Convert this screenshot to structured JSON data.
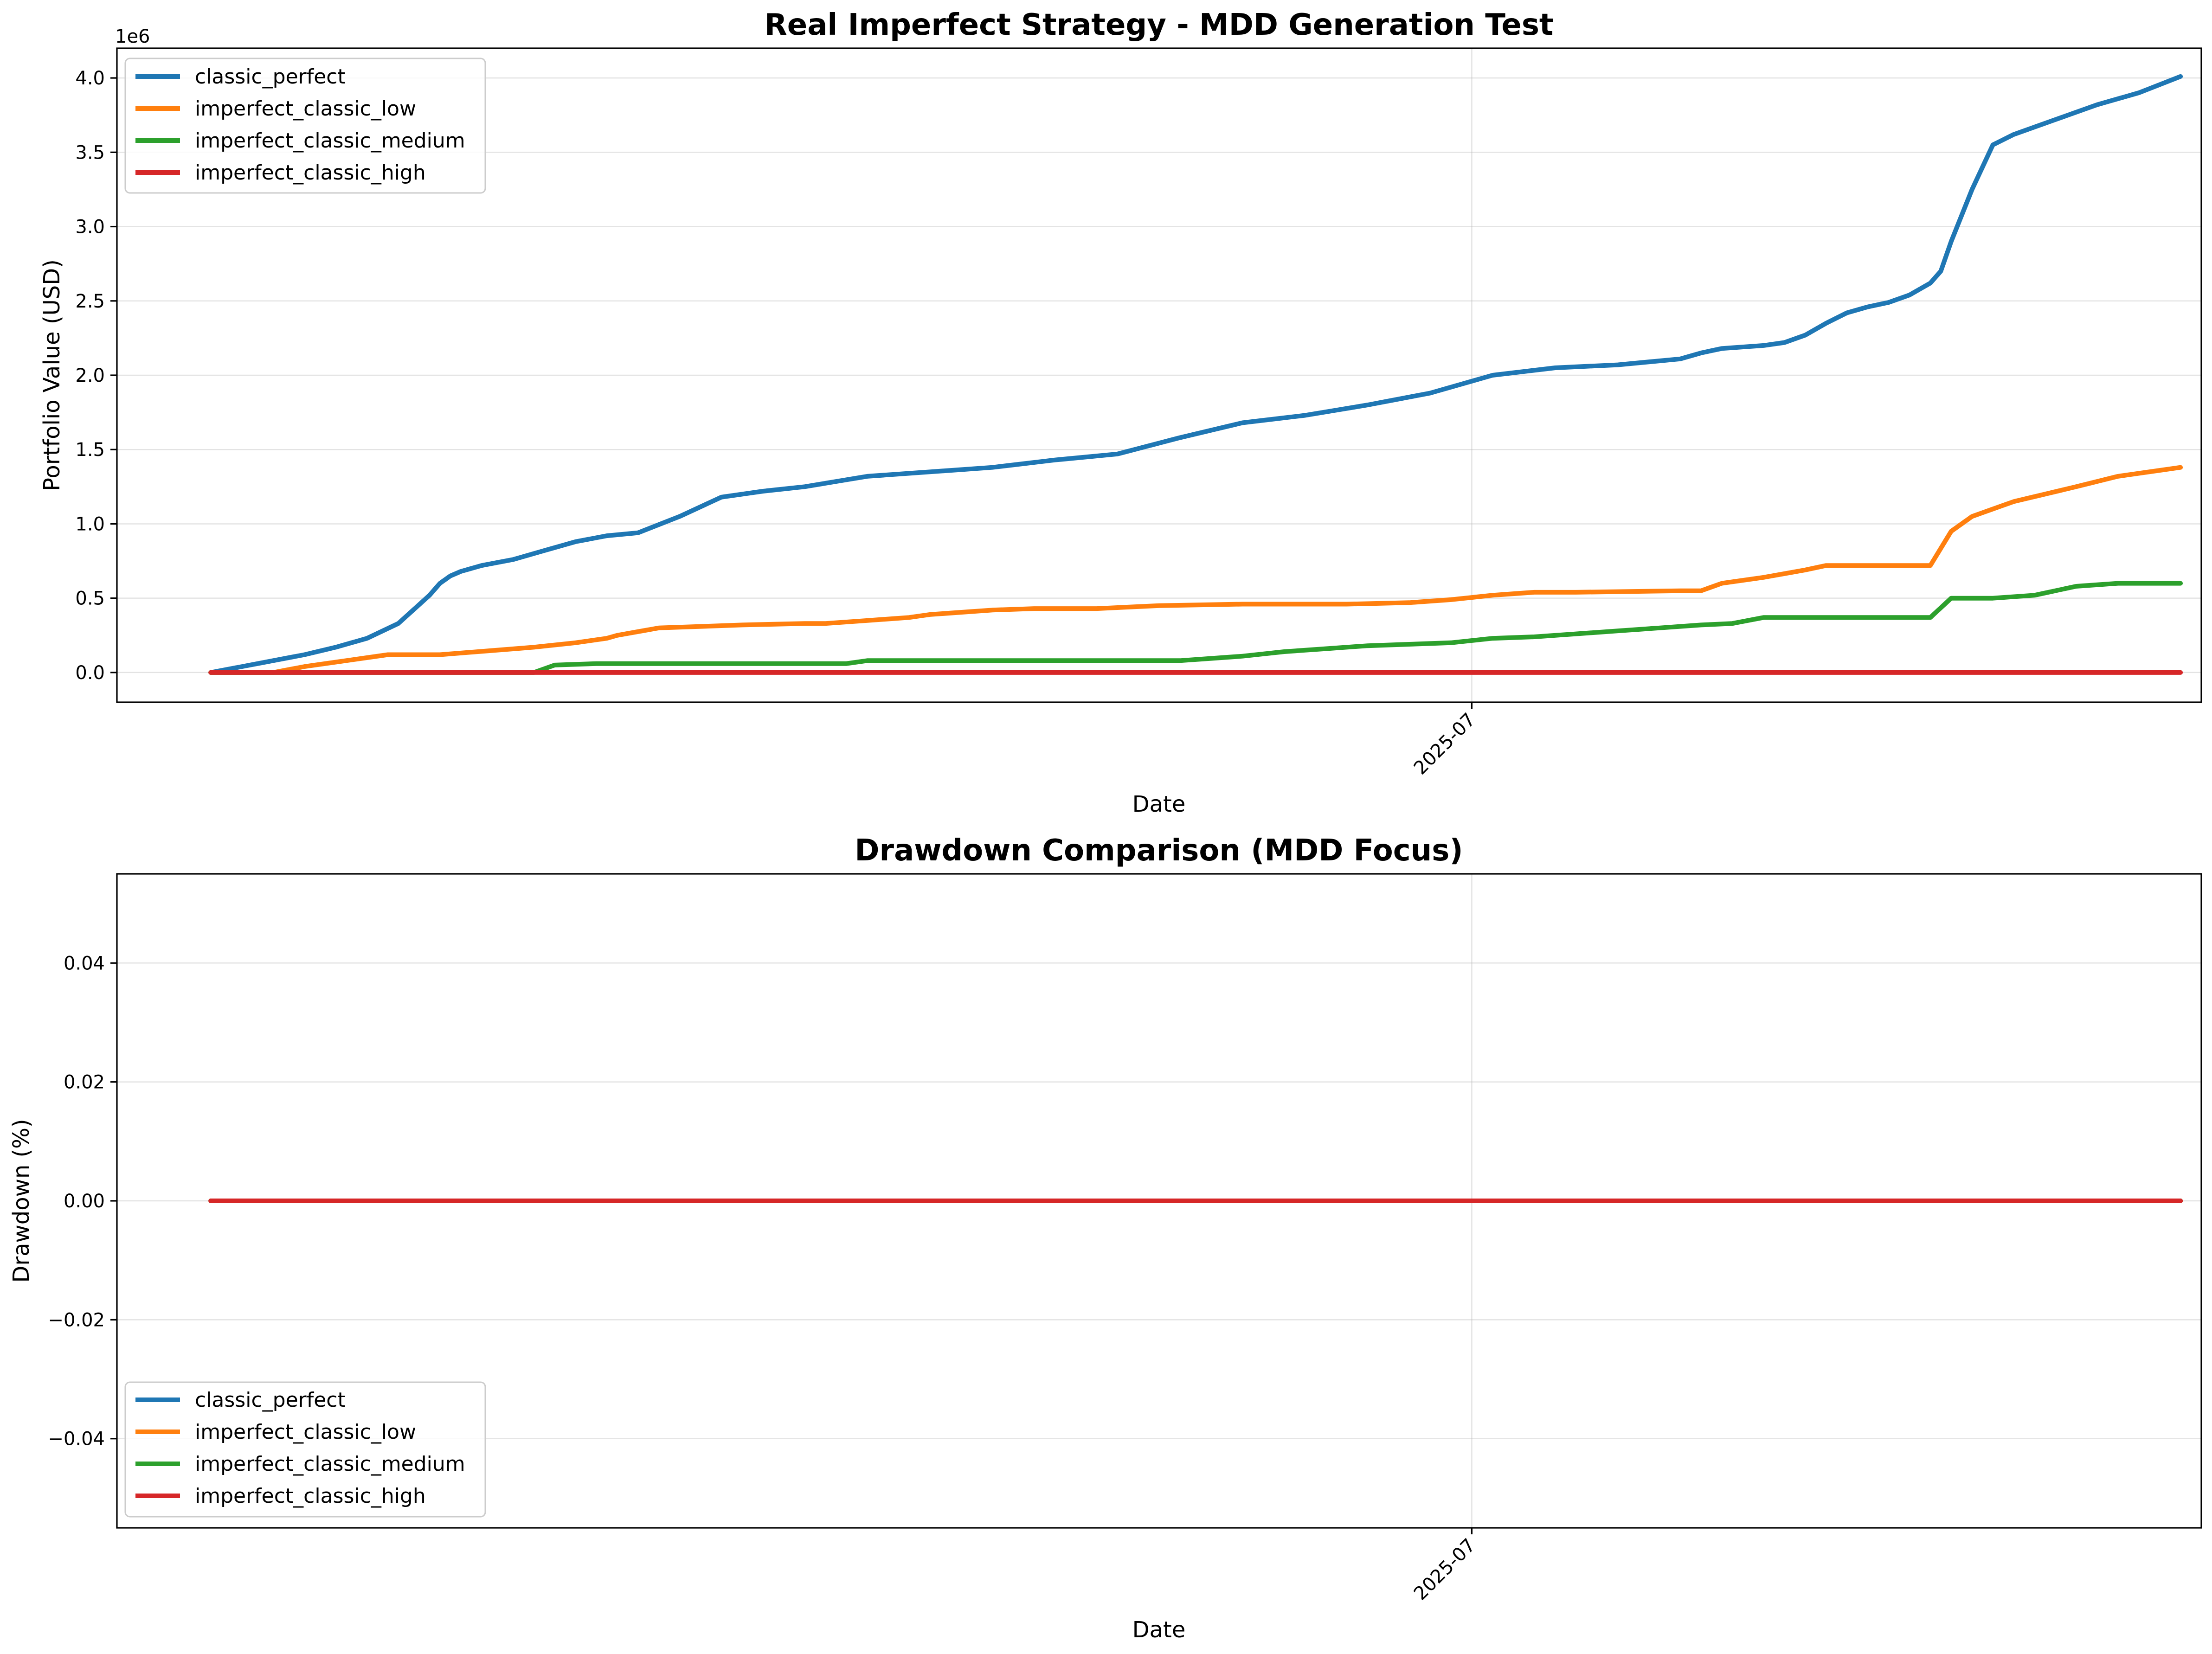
{
  "chart_data": [
    {
      "type": "line",
      "title": "Real Imperfect Strategy - MDD Generation Test",
      "xlabel": "Date",
      "ylabel": "Portfolio Value (USD)",
      "y_offset_label": "1e6",
      "ylim": [
        -200000,
        4200000
      ],
      "xlim": [
        0,
        1
      ],
      "yticks": [
        {
          "value": 0,
          "label": "0.0"
        },
        {
          "value": 500000,
          "label": "0.5"
        },
        {
          "value": 1000000,
          "label": "1.0"
        },
        {
          "value": 1500000,
          "label": "1.5"
        },
        {
          "value": 2000000,
          "label": "2.0"
        },
        {
          "value": 2500000,
          "label": "2.5"
        },
        {
          "value": 3000000,
          "label": "3.0"
        },
        {
          "value": 3500000,
          "label": "3.5"
        },
        {
          "value": 4000000,
          "label": "4.0"
        }
      ],
      "xticks": [
        {
          "value": 0.65,
          "label": "2025-07"
        }
      ],
      "grid": true,
      "legend_position": "upper left",
      "series": [
        {
          "name": "classic_perfect",
          "color": "#1f77b4",
          "x": [
            0.045,
            0.06,
            0.075,
            0.09,
            0.105,
            0.12,
            0.135,
            0.15,
            0.155,
            0.16,
            0.165,
            0.17,
            0.175,
            0.19,
            0.205,
            0.22,
            0.235,
            0.25,
            0.27,
            0.29,
            0.31,
            0.33,
            0.36,
            0.39,
            0.42,
            0.45,
            0.48,
            0.51,
            0.54,
            0.57,
            0.6,
            0.63,
            0.66,
            0.69,
            0.72,
            0.75,
            0.76,
            0.77,
            0.79,
            0.8,
            0.81,
            0.82,
            0.83,
            0.84,
            0.85,
            0.86,
            0.87,
            0.875,
            0.88,
            0.89,
            0.9,
            0.91,
            0.93,
            0.95,
            0.97,
            0.99
          ],
          "y": [
            0,
            40000,
            80000,
            120000,
            170000,
            230000,
            330000,
            520000,
            600000,
            650000,
            680000,
            700000,
            720000,
            760000,
            820000,
            880000,
            920000,
            940000,
            1050000,
            1180000,
            1220000,
            1250000,
            1320000,
            1350000,
            1380000,
            1430000,
            1470000,
            1580000,
            1680000,
            1730000,
            1800000,
            1880000,
            2000000,
            2050000,
            2070000,
            2110000,
            2150000,
            2180000,
            2200000,
            2220000,
            2270000,
            2350000,
            2420000,
            2460000,
            2490000,
            2540000,
            2620000,
            2700000,
            2900000,
            3250000,
            3550000,
            3620000,
            3720000,
            3820000,
            3900000,
            4010000
          ]
        },
        {
          "name": "imperfect_classic_low",
          "color": "#ff7f0e",
          "x": [
            0.045,
            0.075,
            0.09,
            0.1,
            0.13,
            0.14,
            0.155,
            0.2,
            0.22,
            0.235,
            0.24,
            0.26,
            0.3,
            0.33,
            0.34,
            0.36,
            0.38,
            0.39,
            0.41,
            0.42,
            0.44,
            0.45,
            0.47,
            0.5,
            0.54,
            0.59,
            0.62,
            0.64,
            0.66,
            0.68,
            0.7,
            0.75,
            0.76,
            0.77,
            0.78,
            0.79,
            0.81,
            0.82,
            0.83,
            0.835,
            0.845,
            0.85,
            0.86,
            0.87,
            0.88,
            0.89,
            0.91,
            0.94,
            0.96,
            0.99
          ],
          "y": [
            0,
            0,
            40000,
            60000,
            120000,
            120000,
            120000,
            170000,
            200000,
            230000,
            250000,
            300000,
            320000,
            330000,
            330000,
            350000,
            370000,
            390000,
            410000,
            420000,
            430000,
            430000,
            430000,
            450000,
            460000,
            460000,
            470000,
            490000,
            520000,
            540000,
            540000,
            550000,
            550000,
            600000,
            620000,
            640000,
            690000,
            720000,
            720000,
            720000,
            720000,
            720000,
            720000,
            720000,
            950000,
            1050000,
            1150000,
            1250000,
            1320000,
            1380000
          ]
        },
        {
          "name": "imperfect_classic_medium",
          "color": "#2ca02c",
          "x": [
            0.045,
            0.2,
            0.21,
            0.23,
            0.35,
            0.36,
            0.51,
            0.52,
            0.54,
            0.56,
            0.58,
            0.6,
            0.62,
            0.64,
            0.66,
            0.68,
            0.7,
            0.72,
            0.74,
            0.76,
            0.775,
            0.79,
            0.81,
            0.83,
            0.84,
            0.86,
            0.87,
            0.88,
            0.89,
            0.9,
            0.92,
            0.94,
            0.96,
            0.99
          ],
          "y": [
            0,
            0,
            50000,
            60000,
            60000,
            80000,
            80000,
            90000,
            110000,
            140000,
            160000,
            180000,
            190000,
            200000,
            230000,
            240000,
            260000,
            280000,
            300000,
            320000,
            330000,
            370000,
            370000,
            370000,
            370000,
            370000,
            370000,
            500000,
            500000,
            500000,
            520000,
            580000,
            600000,
            600000
          ]
        },
        {
          "name": "imperfect_classic_high",
          "color": "#d62728",
          "x": [
            0.045,
            0.99
          ],
          "y": [
            0,
            0
          ]
        }
      ]
    },
    {
      "type": "line",
      "title": "Drawdown Comparison (MDD Focus)",
      "xlabel": "Date",
      "ylabel": "Drawdown (%)",
      "ylim": [
        -0.055,
        0.055
      ],
      "xlim": [
        0,
        1
      ],
      "yticks": [
        {
          "value": -0.04,
          "label": "−0.04"
        },
        {
          "value": -0.02,
          "label": "−0.02"
        },
        {
          "value": 0,
          "label": "0.00"
        },
        {
          "value": 0.02,
          "label": "0.02"
        },
        {
          "value": 0.04,
          "label": "0.04"
        }
      ],
      "xticks": [
        {
          "value": 0.65,
          "label": "2025-07"
        }
      ],
      "grid": true,
      "legend_position": "lower left",
      "series": [
        {
          "name": "classic_perfect",
          "color": "#1f77b4",
          "x": [
            0.045,
            0.99
          ],
          "y": [
            0,
            0
          ]
        },
        {
          "name": "imperfect_classic_low",
          "color": "#ff7f0e",
          "x": [
            0.045,
            0.99
          ],
          "y": [
            0,
            0
          ]
        },
        {
          "name": "imperfect_classic_medium",
          "color": "#2ca02c",
          "x": [
            0.045,
            0.99
          ],
          "y": [
            0,
            0
          ]
        },
        {
          "name": "imperfect_classic_high",
          "color": "#d62728",
          "x": [
            0.045,
            0.99
          ],
          "y": [
            0,
            0
          ]
        }
      ]
    }
  ]
}
